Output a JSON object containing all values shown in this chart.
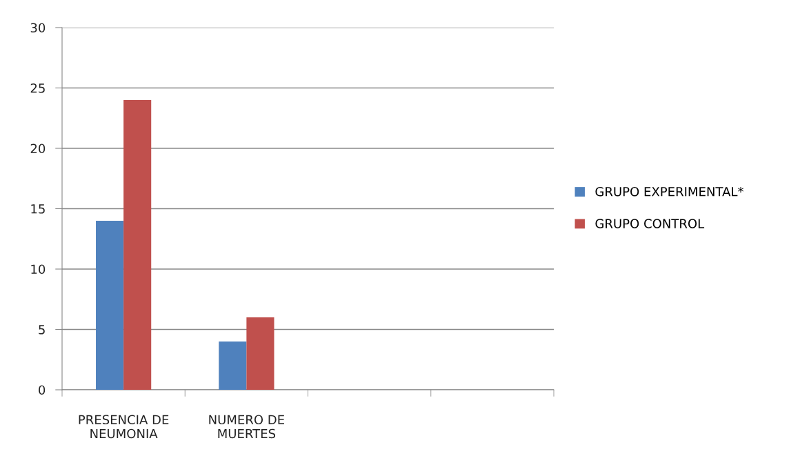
{
  "chart_data": {
    "type": "bar",
    "categories": [
      "PRESENCIA DE\nNEUMONIA",
      "NUMERO DE\nMUERTES",
      null,
      null
    ],
    "series": [
      {
        "name": "GRUPO EXPERIMENTAL*",
        "color": "#4f81bd",
        "values": [
          14,
          4,
          null,
          null
        ]
      },
      {
        "name": "GRUPO CONTROL",
        "color": "#c0504d",
        "values": [
          24,
          6,
          null,
          null
        ]
      }
    ],
    "ylim": [
      0,
      30
    ],
    "yticks": [
      0,
      5,
      10,
      15,
      20,
      25,
      30
    ],
    "grid": "y",
    "legend": "right"
  }
}
